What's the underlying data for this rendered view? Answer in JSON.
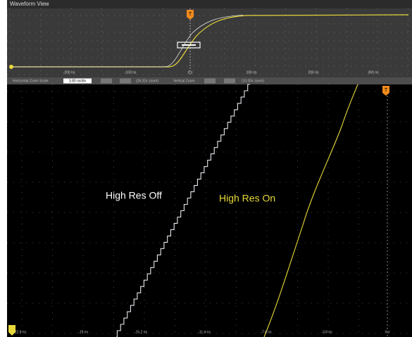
{
  "window": {
    "title": "Waveform View"
  },
  "overview": {
    "x_labels": [
      "-200 ns",
      "-100 ns",
      "0 s",
      "100 ns",
      "200 ns",
      "300 ns"
    ],
    "trigger": "T"
  },
  "zoom_bar": {
    "h_label": "Horizontal Zoom Scale",
    "h_value": "3.80 ns/div",
    "h_zoom": "(26.32x zoom)",
    "v_label": "Vertical Zoom",
    "v_zoom": "(10.00x zoom)"
  },
  "main": {
    "traces": [
      "High Res Off",
      "High Res On"
    ],
    "x_labels": [
      "-22.8 ns",
      "-19 ns",
      "-15.2 ns",
      "-11.4 ns",
      "-7.6 ns",
      "-3.8 ns",
      "0 s"
    ],
    "trigger": "T"
  }
}
